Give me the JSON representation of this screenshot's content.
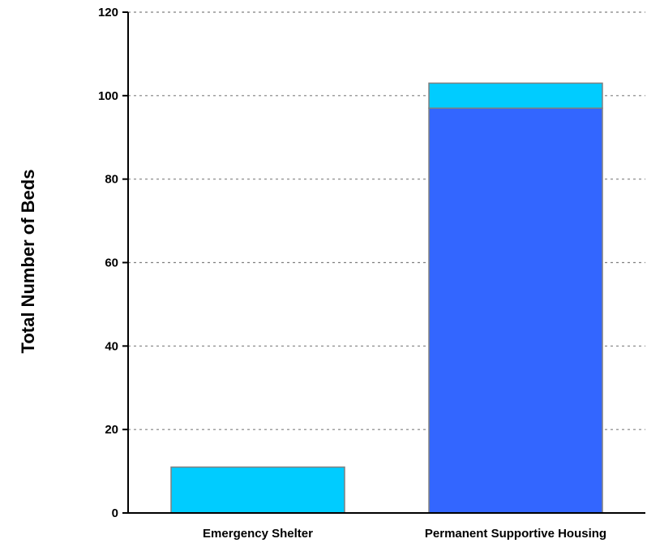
{
  "chart_data": {
    "type": "bar",
    "stacked": true,
    "title": "",
    "xlabel": "",
    "ylabel": "Total Number of Beds",
    "ylim": [
      0,
      120
    ],
    "yticks": [
      0,
      20,
      40,
      60,
      80,
      100,
      120
    ],
    "grid": "horizontal-dotted",
    "legend": "none",
    "categories": [
      "Emergency Shelter",
      "Permanent Supportive Housing"
    ],
    "series": [
      {
        "values": [
          0,
          97
        ],
        "color": "#3366ff"
      },
      {
        "values": [
          11,
          6
        ],
        "color": "#00ccff"
      }
    ]
  },
  "colors": {
    "axis": "#000000",
    "grid": "#808080",
    "bar_outline": "#808080"
  }
}
